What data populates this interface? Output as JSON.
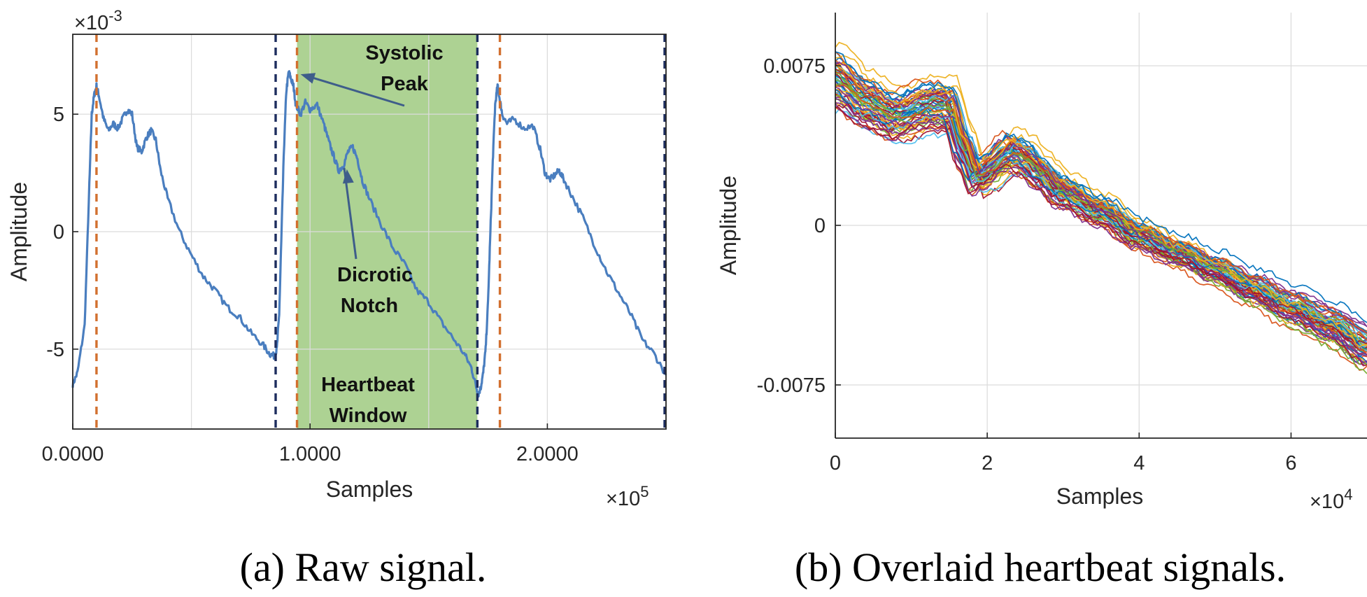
{
  "chart_data": [
    {
      "type": "line",
      "caption": "(a) Raw signal.",
      "xlabel": "Samples",
      "ylabel": "Amplitude",
      "x_multiplier": "×10",
      "x_multiplier_exp": "5",
      "y_multiplier": "×10",
      "y_multiplier_exp": "-3",
      "xlim": [
        0,
        2.5
      ],
      "ylim": [
        -8.4,
        8.4
      ],
      "xticks": [
        0,
        1,
        2
      ],
      "xtick_labels": [
        "0.0000",
        "1.0000",
        "2.0000"
      ],
      "yticks": [
        5,
        0,
        -5
      ],
      "ytick_labels": [
        "5",
        "0",
        "-5"
      ],
      "grid": true,
      "line_color": "#4a7ebf",
      "series": [
        {
          "x": [
            0.0,
            0.02,
            0.05,
            0.07,
            0.08,
            0.09,
            0.1,
            0.11,
            0.13,
            0.15,
            0.17,
            0.19,
            0.21,
            0.23,
            0.25,
            0.27,
            0.29,
            0.31,
            0.33,
            0.35,
            0.37,
            0.4,
            0.45,
            0.5,
            0.55,
            0.6,
            0.65,
            0.7,
            0.75,
            0.8,
            0.83,
            0.85,
            0.86,
            0.87,
            0.88,
            0.89,
            0.9,
            0.91,
            0.92,
            0.93,
            0.94,
            0.96,
            0.98,
            1.0,
            1.03,
            1.06,
            1.08,
            1.1,
            1.12,
            1.14,
            1.16,
            1.18,
            1.2,
            1.22,
            1.25,
            1.3,
            1.35,
            1.4,
            1.45,
            1.5,
            1.55,
            1.6,
            1.65,
            1.68,
            1.7,
            1.71,
            1.72,
            1.73,
            1.74,
            1.75,
            1.76,
            1.77,
            1.78,
            1.79,
            1.8,
            1.81,
            1.83,
            1.86,
            1.9,
            1.94,
            1.97,
            1.99,
            2.01,
            2.03,
            2.05,
            2.07,
            2.1,
            2.15,
            2.2,
            2.25,
            2.3,
            2.35,
            2.4,
            2.45,
            2.5
          ],
          "y": [
            -6.5,
            -6.0,
            -4.0,
            2.0,
            5.0,
            5.8,
            6.2,
            5.8,
            4.8,
            4.3,
            4.6,
            4.4,
            4.8,
            5.2,
            5.0,
            3.6,
            3.4,
            4.0,
            4.3,
            3.9,
            2.6,
            1.4,
            0.0,
            -1.0,
            -1.9,
            -2.5,
            -3.2,
            -3.6,
            -4.3,
            -4.8,
            -5.2,
            -5.3,
            -5.0,
            -3.5,
            0.0,
            3.5,
            6.0,
            6.8,
            6.5,
            6.2,
            5.4,
            5.0,
            5.5,
            5.2,
            5.4,
            4.5,
            3.8,
            3.2,
            2.6,
            2.8,
            3.4,
            3.6,
            3.1,
            2.2,
            1.4,
            0.3,
            -0.7,
            -1.4,
            -2.5,
            -3.0,
            -3.8,
            -4.5,
            -5.2,
            -5.8,
            -6.6,
            -6.9,
            -6.6,
            -6.0,
            -5.0,
            -3.0,
            0.0,
            3.0,
            5.4,
            6.2,
            5.6,
            5.0,
            4.6,
            4.8,
            4.4,
            4.5,
            3.5,
            2.5,
            2.2,
            2.4,
            2.6,
            2.2,
            1.6,
            0.6,
            -0.6,
            -1.7,
            -2.6,
            -3.5,
            -4.6,
            -5.2,
            -6.1
          ]
        }
      ],
      "vlines_orange": [
        0.1,
        0.945,
        1.8
      ],
      "vlines_navy": [
        0.855,
        1.705,
        2.5
      ],
      "window_span": [
        0.945,
        1.705
      ],
      "window_label": [
        "Heartbeat",
        "Window"
      ],
      "window_color": "#8dc06a",
      "annotations": [
        {
          "text": [
            "Systolic",
            "Peak"
          ],
          "target": [
            0.96,
            6.7
          ]
        },
        {
          "text": [
            "Dicrotic",
            "Notch"
          ],
          "target": [
            1.155,
            2.6
          ]
        }
      ]
    },
    {
      "type": "line",
      "caption": "(b) Overlaid heartbeat signals.",
      "xlabel": "Samples",
      "ylabel": "Amplitude",
      "x_multiplier": "×10",
      "x_multiplier_exp": "4",
      "xlim": [
        0,
        7
      ],
      "ylim": [
        -0.01,
        0.01
      ],
      "xticks": [
        0,
        2,
        4,
        6
      ],
      "xtick_labels": [
        "0",
        "2",
        "4",
        "6"
      ],
      "yticks": [
        0.0075,
        0,
        -0.0075
      ],
      "ytick_labels": [
        "0.0075",
        "0",
        "-0.0075"
      ],
      "grid": true,
      "template": {
        "x": [
          0,
          0.4,
          0.8,
          1.2,
          1.5,
          1.7,
          1.85,
          2.0,
          2.3,
          2.5,
          2.7,
          3.0,
          3.5,
          4.0,
          4.5,
          5.0,
          5.5,
          6.0,
          6.5,
          7.0
        ],
        "y": [
          0.0068,
          0.0057,
          0.005,
          0.0055,
          0.0055,
          0.0035,
          0.0022,
          0.0025,
          0.0034,
          0.0031,
          0.0024,
          0.0015,
          0.0006,
          -0.0005,
          -0.0013,
          -0.0021,
          -0.003,
          -0.0039,
          -0.0047,
          -0.0058
        ]
      },
      "line_count": 60,
      "colors": [
        "#0072bd",
        "#d95319",
        "#edb120",
        "#7e2f8e",
        "#77ac30",
        "#4dbeee",
        "#a2142f"
      ]
    }
  ]
}
